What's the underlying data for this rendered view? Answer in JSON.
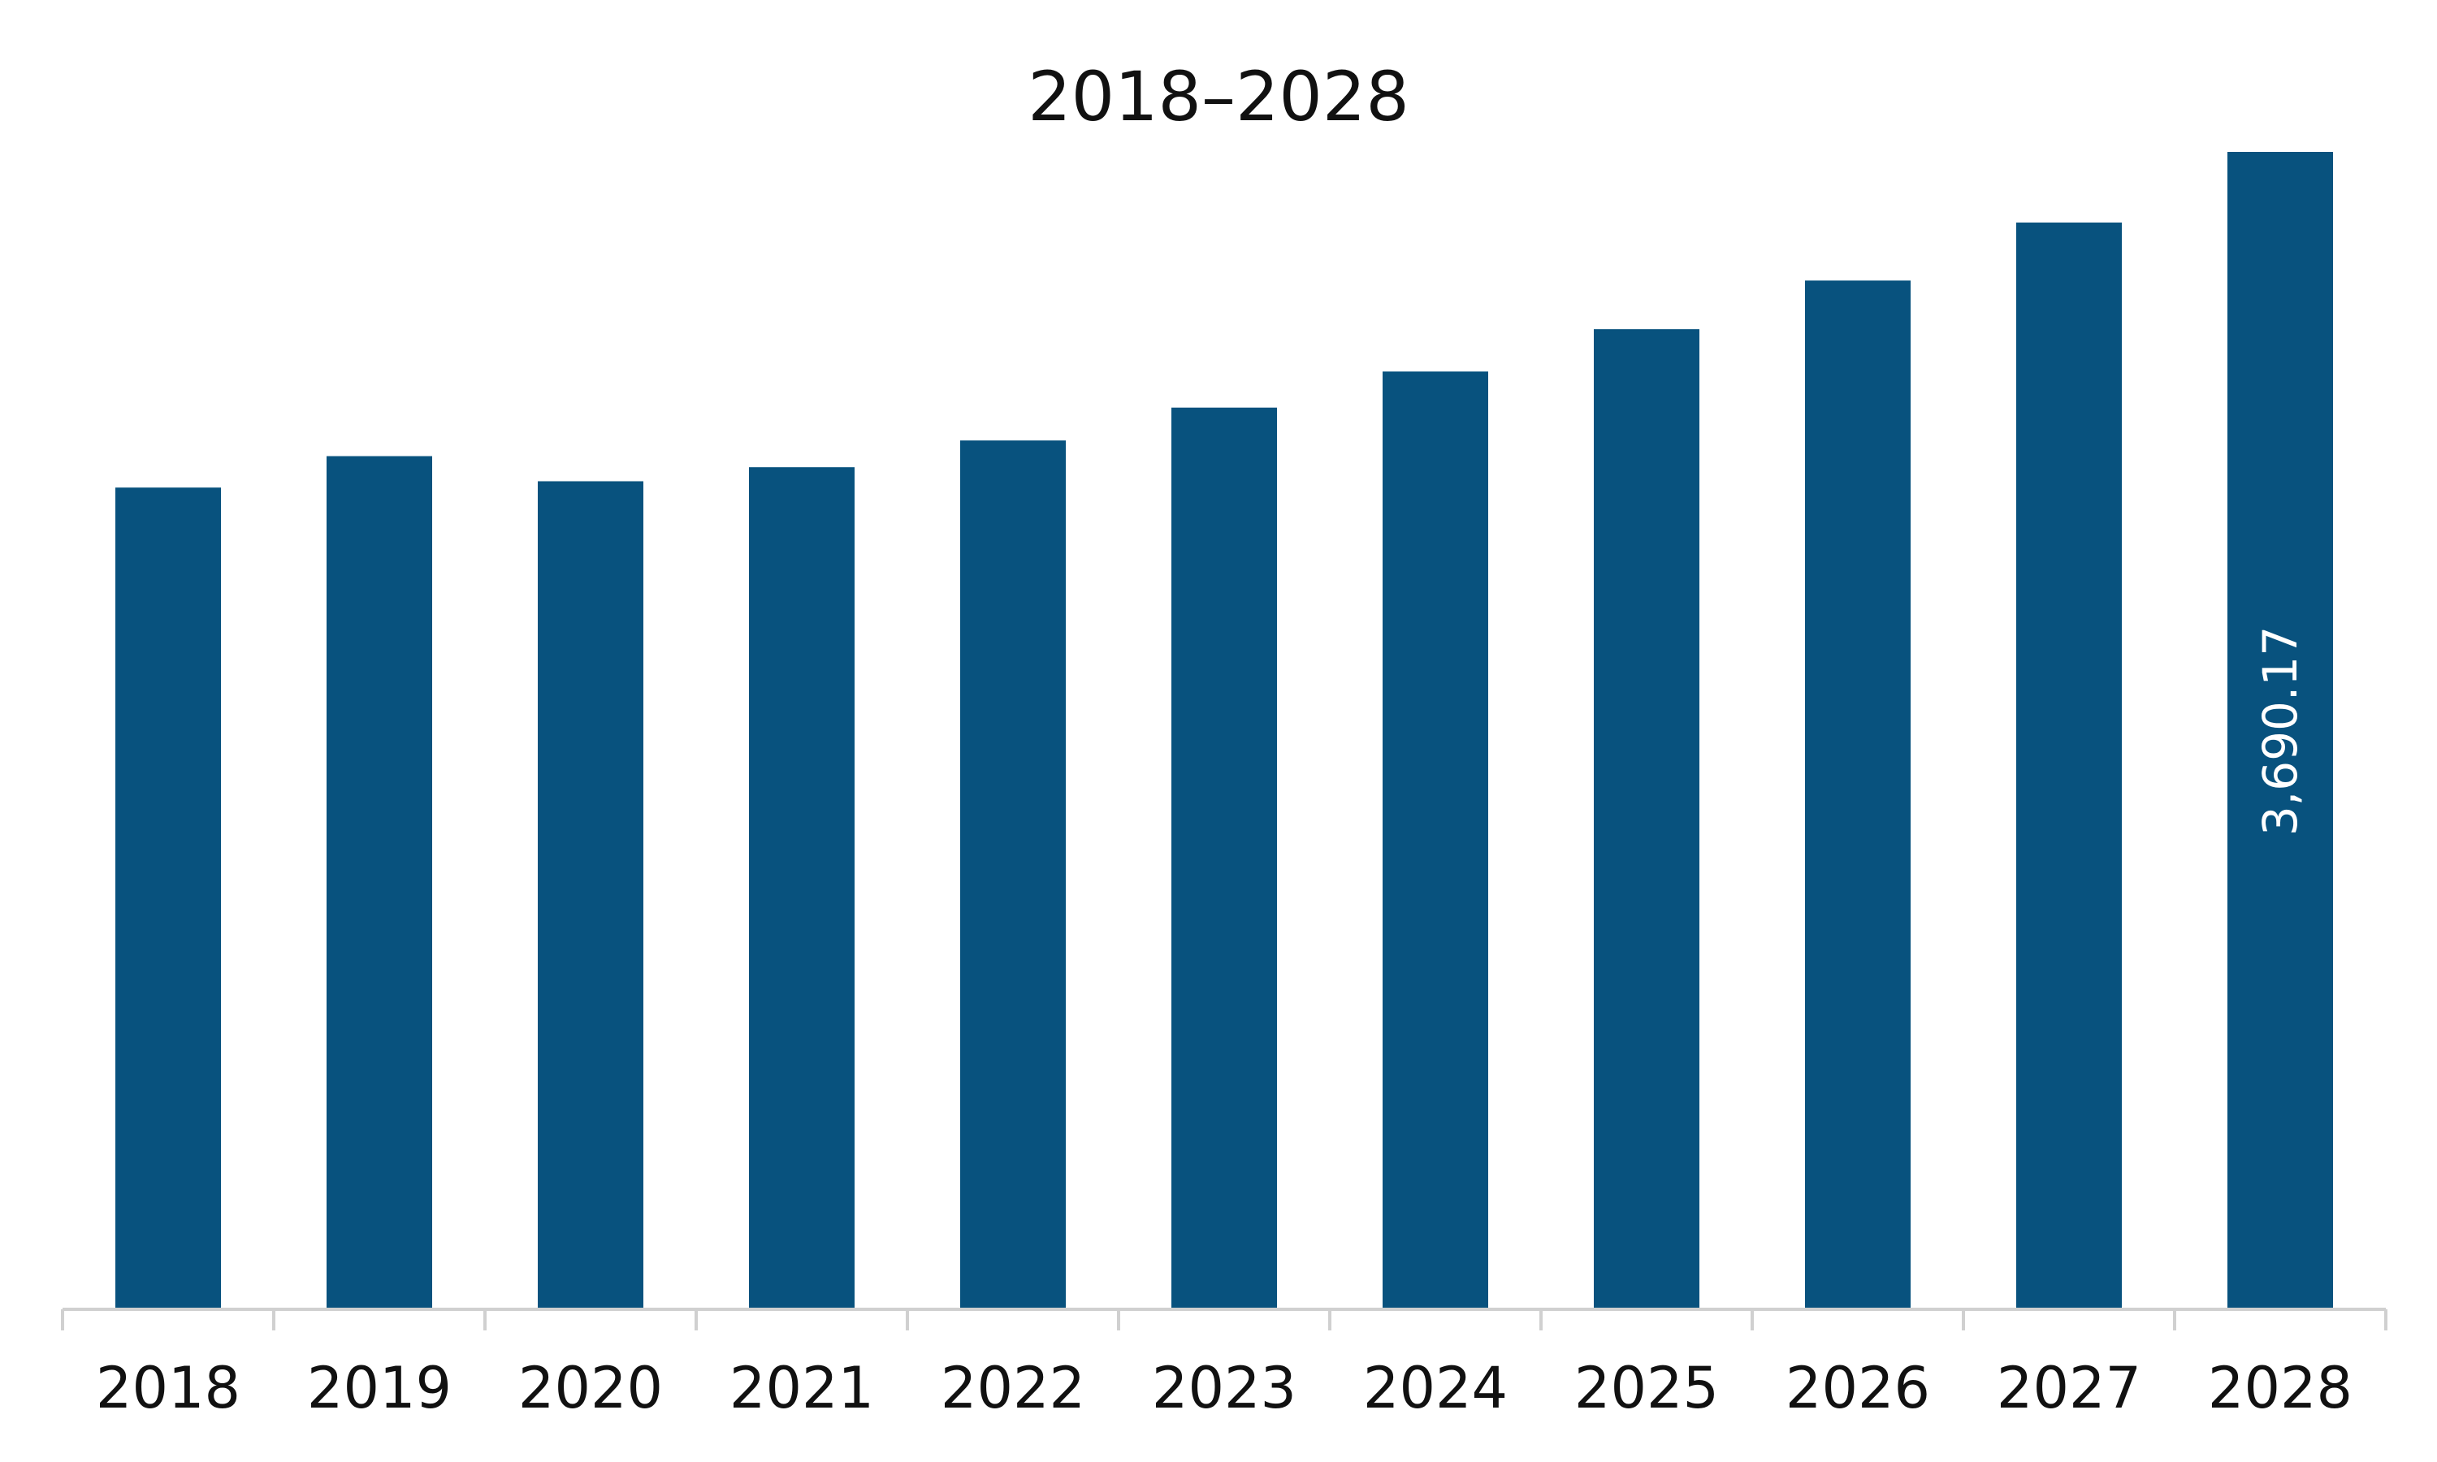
{
  "chart_data": {
    "type": "bar",
    "title": "2018–2028",
    "xlabel": "",
    "ylabel": "",
    "categories": [
      "2018",
      "2019",
      "2020",
      "2021",
      "2022",
      "2023",
      "2024",
      "2025",
      "2026",
      "2027",
      "2028"
    ],
    "values": [
      2620,
      2720,
      2640,
      2685,
      2770,
      2875,
      2990,
      3125,
      3280,
      3465,
      3690.17
    ],
    "data_labels": [
      {
        "category": "2028",
        "text": "3,690.17"
      }
    ],
    "ylim": [
      0,
      3690.17
    ],
    "grid": false,
    "legend": "none",
    "bar_color": "#08527E",
    "axis_color": "#d0d0d0"
  }
}
